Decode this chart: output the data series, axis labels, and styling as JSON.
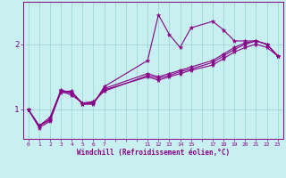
{
  "xlabel": "Windchill (Refroidissement éolien,°C)",
  "bg_color": "#c8f0f0",
  "line_color": "#880088",
  "grid_color": "#a0d8d8",
  "axis_color": "#880088",
  "tick_labels": [
    "0",
    "1",
    "2",
    "3",
    "4",
    "5",
    "6",
    "7",
    "",
    "",
    "",
    "11",
    "12",
    "13",
    "14",
    "15",
    "",
    "17",
    "18",
    "19",
    "20",
    "21",
    "22",
    "23"
  ],
  "y_ticks": [
    1,
    2
  ],
  "ylim": [
    0.55,
    2.65
  ],
  "lines": [
    {
      "xi": [
        0,
        1,
        2,
        3,
        4,
        5,
        6,
        7,
        11,
        12,
        13,
        14,
        15,
        17,
        18,
        19,
        20,
        21,
        22,
        23
      ],
      "y": [
        1.0,
        0.72,
        0.82,
        1.28,
        1.28,
        1.08,
        1.08,
        1.35,
        1.75,
        2.45,
        2.15,
        1.95,
        2.25,
        2.35,
        2.22,
        2.05,
        2.05,
        2.05,
        2.0,
        1.82
      ]
    },
    {
      "xi": [
        0,
        1,
        2,
        3,
        4,
        5,
        6,
        7,
        11,
        12,
        13,
        14,
        15,
        17,
        18,
        19,
        20,
        21,
        22,
        23
      ],
      "y": [
        1.0,
        0.75,
        0.88,
        1.28,
        1.22,
        1.1,
        1.12,
        1.28,
        1.52,
        1.48,
        1.52,
        1.58,
        1.62,
        1.72,
        1.82,
        1.92,
        2.0,
        2.05,
        2.0,
        1.82
      ]
    },
    {
      "xi": [
        0,
        1,
        2,
        3,
        4,
        5,
        6,
        7,
        11,
        12,
        13,
        14,
        15,
        17,
        18,
        19,
        20,
        21,
        22,
        23
      ],
      "y": [
        1.0,
        0.75,
        0.85,
        1.3,
        1.25,
        1.1,
        1.1,
        1.32,
        1.55,
        1.5,
        1.55,
        1.6,
        1.65,
        1.75,
        1.85,
        1.95,
        2.02,
        2.05,
        2.0,
        1.82
      ]
    },
    {
      "xi": [
        0,
        1,
        2,
        3,
        4,
        5,
        6,
        7,
        11,
        12,
        13,
        14,
        15,
        17,
        18,
        19,
        20,
        21,
        22,
        23
      ],
      "y": [
        1.0,
        0.75,
        0.84,
        1.26,
        1.26,
        1.08,
        1.1,
        1.3,
        1.5,
        1.45,
        1.5,
        1.55,
        1.6,
        1.68,
        1.78,
        1.88,
        1.95,
        2.0,
        1.95,
        1.82
      ]
    }
  ],
  "n_categories": 24
}
